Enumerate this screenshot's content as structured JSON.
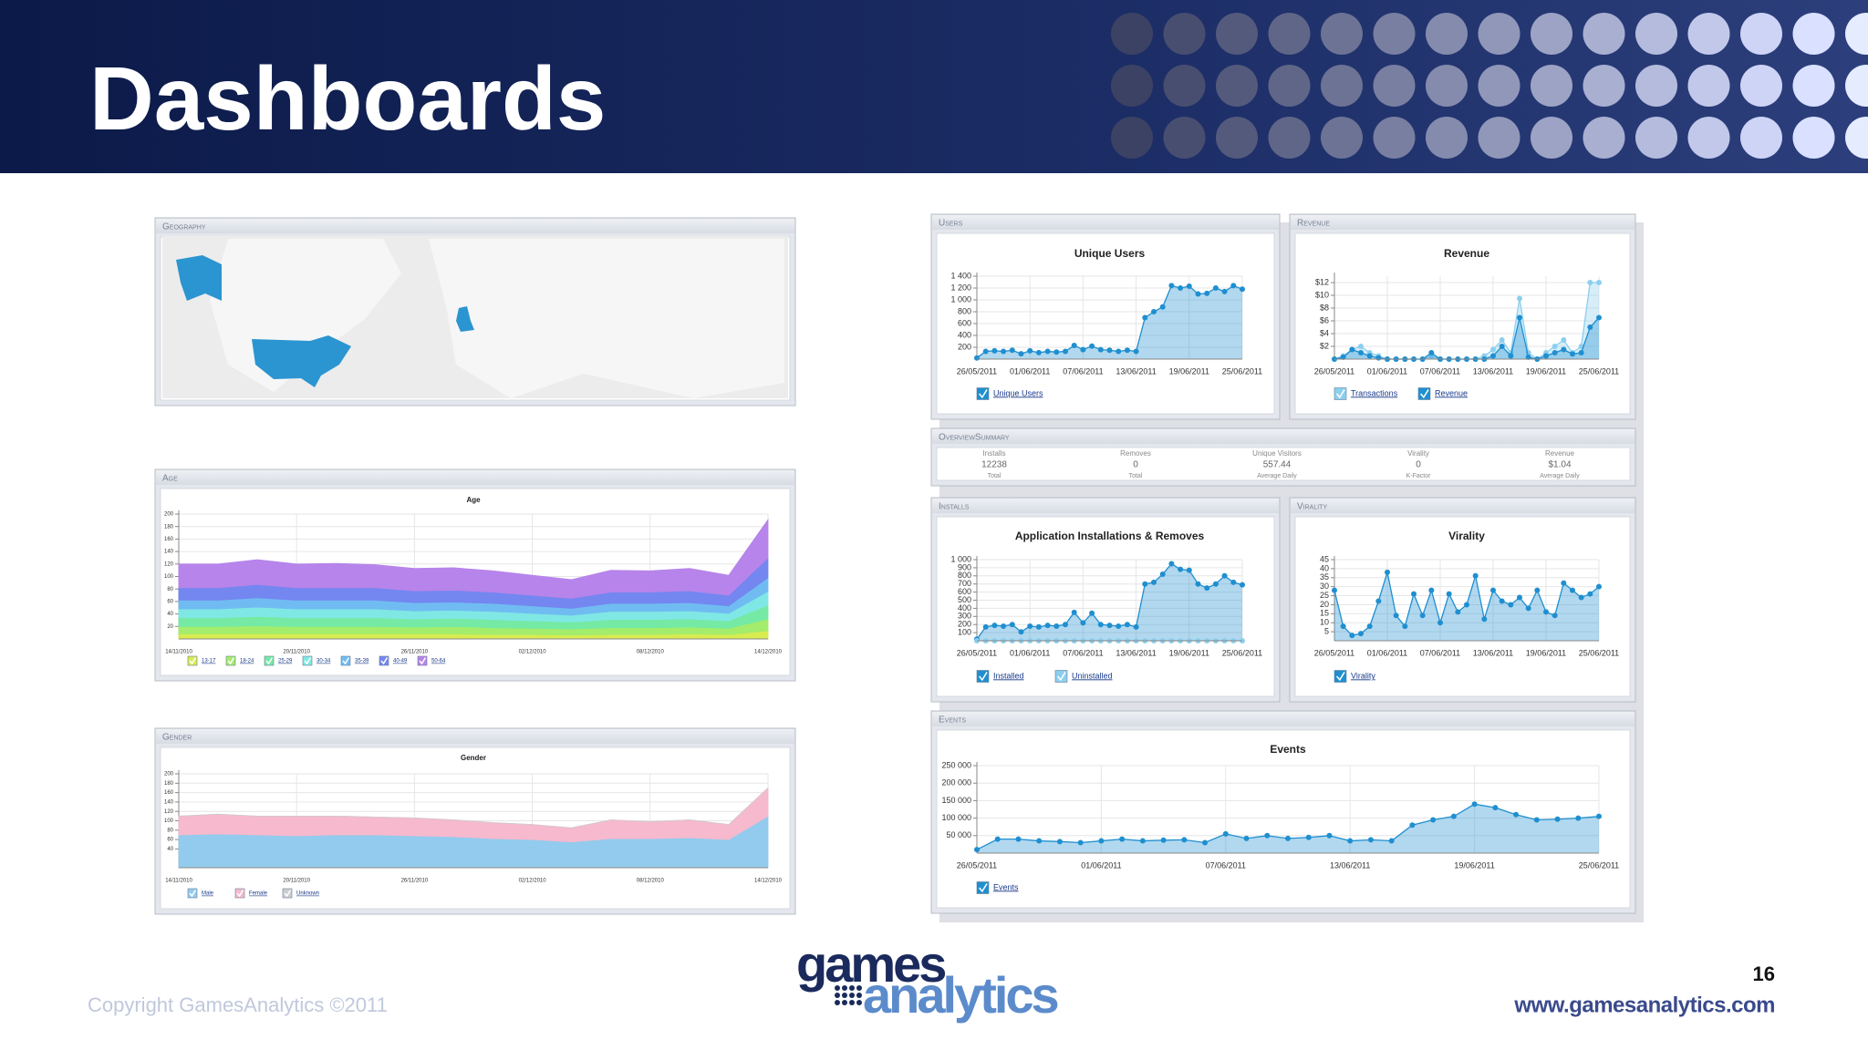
{
  "slide": {
    "title": "Dashboards",
    "copyright": "Copyright GamesAnalytics ©2011",
    "page_number": 16,
    "url": "www.gamesanalytics.com",
    "logo_top": "games",
    "logo_bottom": "analytics"
  },
  "panels": {
    "geography": "Geography",
    "age": "Age",
    "gender": "Gender",
    "users": "Users",
    "revenue": "Revenue",
    "overview": "OverviewSummary",
    "installs": "Installs",
    "virality": "Virality",
    "events": "Events"
  },
  "overview": [
    {
      "label": "Installs",
      "value": 12238,
      "note": "Total"
    },
    {
      "label": "Removes",
      "value": 0,
      "note": "Total"
    },
    {
      "label": "Unique Visitors",
      "value": 557.44,
      "note": "Average Daily"
    },
    {
      "label": "Virality",
      "value": 0,
      "note": "K-Factor"
    },
    {
      "label": "Revenue",
      "value": "$1.04",
      "note": "Average Daily"
    }
  ],
  "chart_data": [
    {
      "type": "line",
      "title": "Unique Users",
      "area": true,
      "grid": true,
      "categories": [
        "26/05/2011",
        null,
        null,
        null,
        null,
        null,
        "01/06/2011",
        null,
        null,
        null,
        null,
        null,
        "07/06/2011",
        null,
        null,
        null,
        null,
        null,
        "13/06/2011",
        null,
        null,
        null,
        null,
        null,
        "19/06/2011",
        null,
        null,
        null,
        null,
        null,
        "25/06/2011"
      ],
      "series": [
        {
          "name": "Unique Users",
          "color": "#1f8fd0",
          "values": [
            20,
            130,
            140,
            130,
            150,
            90,
            140,
            110,
            130,
            120,
            130,
            230,
            160,
            220,
            160,
            150,
            130,
            150,
            130,
            700,
            800,
            880,
            1240,
            1200,
            1230,
            1100,
            1110,
            1200,
            1140,
            1240,
            1180
          ]
        }
      ],
      "ylim": [
        0,
        1400
      ],
      "yticks": [
        200,
        400,
        600,
        800,
        {
          "value": 1000,
          "label": "1 000"
        },
        {
          "value": 1200,
          "label": "1 200"
        },
        {
          "value": 1400,
          "label": "1 400"
        }
      ]
    },
    {
      "type": "line",
      "title": "Revenue",
      "area": true,
      "grid": true,
      "categories": [
        "26/05/2011",
        null,
        null,
        null,
        null,
        null,
        "01/06/2011",
        null,
        null,
        null,
        null,
        null,
        "07/06/2011",
        null,
        null,
        null,
        null,
        null,
        "13/06/2011",
        null,
        null,
        null,
        null,
        null,
        "19/06/2011",
        null,
        null,
        null,
        null,
        null,
        "25/06/2011"
      ],
      "series": [
        {
          "name": "Transactions",
          "color": "#8ccfee",
          "values": [
            0,
            0.5,
            1.5,
            2,
            1,
            0.5,
            0,
            0,
            0,
            0,
            0,
            0.5,
            0,
            0,
            0,
            0,
            0,
            0.5,
            1.5,
            3,
            1,
            9.5,
            1,
            0,
            1,
            2,
            3,
            1,
            2,
            12,
            12
          ]
        },
        {
          "name": "Revenue",
          "color": "#1f8fd0",
          "values": [
            0,
            0.3,
            1.5,
            1,
            0.5,
            0.2,
            0,
            0,
            0,
            0,
            0,
            1,
            0,
            0,
            0,
            0,
            0,
            0,
            0.5,
            2,
            0.5,
            6.5,
            0.3,
            0,
            0.5,
            1,
            1.5,
            0.8,
            1,
            5,
            6.5
          ]
        }
      ],
      "ylim": [
        0,
        13
      ],
      "yticks": [
        {
          "value": 2,
          "label": "$2"
        },
        {
          "value": 4,
          "label": "$4"
        },
        {
          "value": 6,
          "label": "$6"
        },
        {
          "value": 8,
          "label": "$8"
        },
        {
          "value": 10,
          "label": "$10"
        },
        {
          "value": 12,
          "label": "$12"
        }
      ]
    },
    {
      "type": "line",
      "title": "Application Installations & Removes",
      "area": true,
      "grid": true,
      "categories": [
        "26/05/2011",
        null,
        null,
        null,
        null,
        null,
        "01/06/2011",
        null,
        null,
        null,
        null,
        null,
        "07/06/2011",
        null,
        null,
        null,
        null,
        null,
        "13/06/2011",
        null,
        null,
        null,
        null,
        null,
        "19/06/2011",
        null,
        null,
        null,
        null,
        null,
        "25/06/2011"
      ],
      "series": [
        {
          "name": "Installed",
          "color": "#1f8fd0",
          "values": [
            20,
            170,
            190,
            180,
            200,
            110,
            180,
            170,
            190,
            180,
            200,
            350,
            220,
            340,
            200,
            190,
            180,
            200,
            170,
            700,
            720,
            820,
            950,
            880,
            870,
            700,
            650,
            700,
            800,
            720,
            690
          ]
        },
        {
          "name": "Uninstalled",
          "color": "#8ccfee",
          "values": [
            0,
            0,
            0,
            0,
            0,
            0,
            0,
            0,
            0,
            0,
            0,
            0,
            0,
            0,
            0,
            0,
            0,
            0,
            0,
            0,
            0,
            0,
            0,
            0,
            0,
            0,
            0,
            0,
            0,
            0,
            0
          ]
        }
      ],
      "ylim": [
        0,
        1000
      ],
      "yticks": [
        100,
        200,
        300,
        400,
        500,
        600,
        700,
        800,
        900,
        {
          "value": 1000,
          "label": "1 000"
        }
      ]
    },
    {
      "type": "line",
      "title": "Virality",
      "area": true,
      "grid": true,
      "categories": [
        "26/05/2011",
        null,
        null,
        null,
        null,
        null,
        "01/06/2011",
        null,
        null,
        null,
        null,
        null,
        "07/06/2011",
        null,
        null,
        null,
        null,
        null,
        "13/06/2011",
        null,
        null,
        null,
        null,
        null,
        "19/06/2011",
        null,
        null,
        null,
        null,
        null,
        "25/06/2011"
      ],
      "series": [
        {
          "name": "Virality",
          "color": "#1f8fd0",
          "values": [
            28,
            8,
            3,
            4,
            8,
            22,
            38,
            14,
            8,
            26,
            14,
            28,
            10,
            26,
            16,
            20,
            36,
            12,
            28,
            22,
            20,
            24,
            18,
            28,
            16,
            14,
            32,
            28,
            24,
            26,
            30
          ]
        }
      ],
      "ylim": [
        0,
        45
      ],
      "yticks": [
        5,
        10,
        15,
        20,
        25,
        30,
        35,
        40,
        45
      ]
    },
    {
      "type": "line",
      "title": "Events",
      "area": true,
      "grid": true,
      "categories": [
        "26/05/2011",
        null,
        null,
        null,
        null,
        null,
        "01/06/2011",
        null,
        null,
        null,
        null,
        null,
        "07/06/2011",
        null,
        null,
        null,
        null,
        null,
        "13/06/2011",
        null,
        null,
        null,
        null,
        null,
        "19/06/2011",
        null,
        null,
        null,
        null,
        null,
        "25/06/2011"
      ],
      "series": [
        {
          "name": "Events",
          "color": "#1f8fd0",
          "values": [
            10000,
            40000,
            40000,
            35000,
            33000,
            30000,
            35000,
            40000,
            35000,
            37000,
            38000,
            30000,
            55000,
            42000,
            50000,
            42000,
            45000,
            50000,
            35000,
            38000,
            35000,
            80000,
            95000,
            105000,
            140000,
            130000,
            110000,
            95000,
            97000,
            100000,
            105000
          ]
        }
      ],
      "ylim": [
        0,
        250000
      ],
      "yticks": [
        {
          "value": 50000,
          "label": "50 000"
        },
        {
          "value": 100000,
          "label": "100 000"
        },
        {
          "value": 150000,
          "label": "150 000"
        },
        {
          "value": 200000,
          "label": "200 000"
        },
        {
          "value": 250000,
          "label": "250 000"
        }
      ]
    },
    {
      "type": "area",
      "stacked": true,
      "title": "Age",
      "grid": true,
      "categories": [
        "14/11/2010",
        null,
        null,
        "20/11/2010",
        null,
        null,
        "26/11/2010",
        null,
        null,
        "02/12/2010",
        null,
        null,
        "08/12/2010",
        null,
        null,
        "14/12/2010"
      ],
      "series": [
        {
          "name": "13-17",
          "color": "#d8ec50",
          "values": [
            8,
            8,
            8,
            8,
            8,
            8,
            8,
            8,
            7,
            7,
            6,
            7,
            7,
            8,
            7,
            13
          ]
        },
        {
          "name": "18-24",
          "color": "#a4ec6c",
          "values": [
            12,
            12,
            13,
            12,
            12,
            12,
            11,
            12,
            11,
            10,
            10,
            11,
            11,
            11,
            10,
            19
          ]
        },
        {
          "name": "25-29",
          "color": "#74eaa4",
          "values": [
            14,
            14,
            15,
            14,
            14,
            14,
            13,
            13,
            13,
            12,
            11,
            13,
            13,
            13,
            12,
            22
          ]
        },
        {
          "name": "30-34",
          "color": "#80e8e4",
          "values": [
            14,
            14,
            15,
            14,
            14,
            14,
            13,
            13,
            13,
            12,
            11,
            13,
            13,
            13,
            12,
            22
          ]
        },
        {
          "name": "35-39",
          "color": "#70bcf2",
          "values": [
            14,
            14,
            15,
            14,
            14,
            14,
            13,
            13,
            13,
            12,
            11,
            13,
            13,
            13,
            12,
            22
          ]
        },
        {
          "name": "40-49",
          "color": "#7486f0",
          "values": [
            20,
            20,
            21,
            20,
            20,
            20,
            19,
            19,
            18,
            17,
            16,
            18,
            18,
            19,
            17,
            32
          ]
        },
        {
          "name": "50-64",
          "color": "#b684ea",
          "values": [
            38,
            38,
            40,
            38,
            39,
            37,
            36,
            36,
            34,
            32,
            30,
            35,
            34,
            36,
            32,
            61
          ]
        }
      ],
      "ylim": [
        0,
        200
      ],
      "yticks": [
        20,
        40,
        60,
        80,
        100,
        120,
        140,
        160,
        180,
        200
      ]
    },
    {
      "type": "area",
      "stacked": true,
      "title": "Gender",
      "grid": true,
      "categories": [
        "14/11/2010",
        null,
        null,
        "20/11/2010",
        null,
        null,
        "26/11/2010",
        null,
        null,
        "02/12/2010",
        null,
        null,
        "08/12/2010",
        null,
        null,
        "14/12/2010"
      ],
      "series": [
        {
          "name": "Male",
          "color": "#92cbee",
          "values": [
            70,
            72,
            70,
            68,
            70,
            70,
            68,
            66,
            62,
            60,
            55,
            62,
            62,
            64,
            60,
            110
          ]
        },
        {
          "name": "Female",
          "color": "#f6b9cd",
          "values": [
            40,
            42,
            40,
            42,
            40,
            38,
            38,
            36,
            34,
            32,
            30,
            40,
            36,
            38,
            32,
            60
          ]
        },
        {
          "name": "Unknown",
          "color": "#cccccc",
          "values": [
            0,
            0,
            0,
            0,
            0,
            0,
            0,
            0,
            0,
            0,
            0,
            0,
            0,
            0,
            0,
            0
          ]
        }
      ],
      "ylim": [
        0,
        200
      ],
      "yticks": [
        40,
        60,
        80,
        100,
        120,
        140,
        160,
        180,
        200
      ]
    }
  ]
}
